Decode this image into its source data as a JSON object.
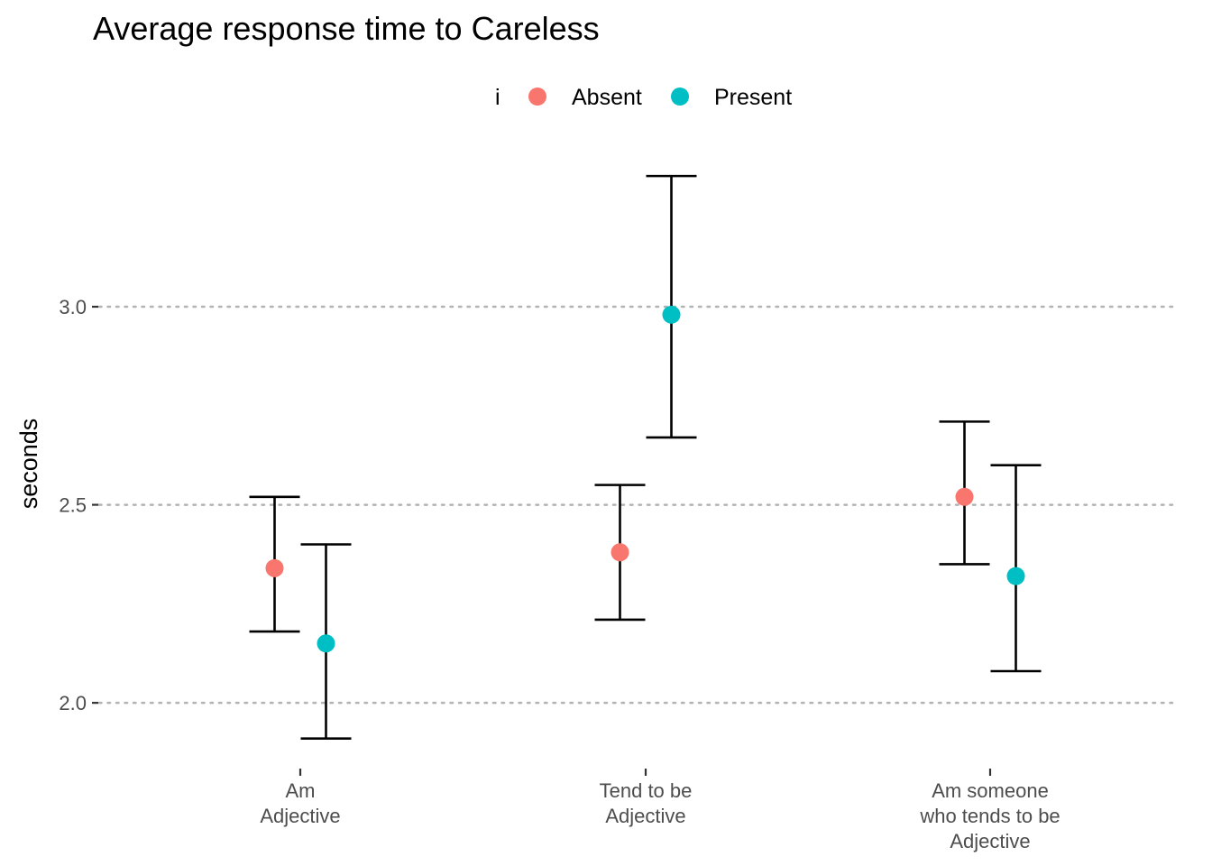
{
  "chart_data": {
    "type": "scatter",
    "title": "Average response time to Careless",
    "xlabel": "",
    "ylabel": "seconds",
    "ylim": [
      1.85,
      3.41
    ],
    "grid": "dotted horizontal major gridlines",
    "y_ticks": [
      2.0,
      2.5,
      3.0
    ],
    "y_tick_labels": [
      "2.0",
      "2.5",
      "3.0"
    ],
    "legend": {
      "title": "i",
      "position": "top",
      "entries": [
        {
          "name": "Absent",
          "color": "#F8766D"
        },
        {
          "name": "Present",
          "color": "#00BFC4"
        }
      ]
    },
    "categories": [
      {
        "lines": [
          "Am",
          "Adjective"
        ]
      },
      {
        "lines": [
          "Tend to be",
          "Adjective"
        ]
      },
      {
        "lines": [
          "Am someone",
          "who tends to be",
          "Adjective"
        ]
      }
    ],
    "series": [
      {
        "name": "Absent",
        "color": "#F8766D",
        "values": [
          2.34,
          2.38,
          2.52
        ],
        "lower": [
          2.18,
          2.21,
          2.35
        ],
        "upper": [
          2.52,
          2.55,
          2.71
        ]
      },
      {
        "name": "Present",
        "color": "#00BFC4",
        "values": [
          2.15,
          2.98,
          2.32
        ],
        "lower": [
          1.91,
          2.67,
          2.08
        ],
        "upper": [
          2.4,
          3.33,
          2.6
        ]
      }
    ]
  }
}
